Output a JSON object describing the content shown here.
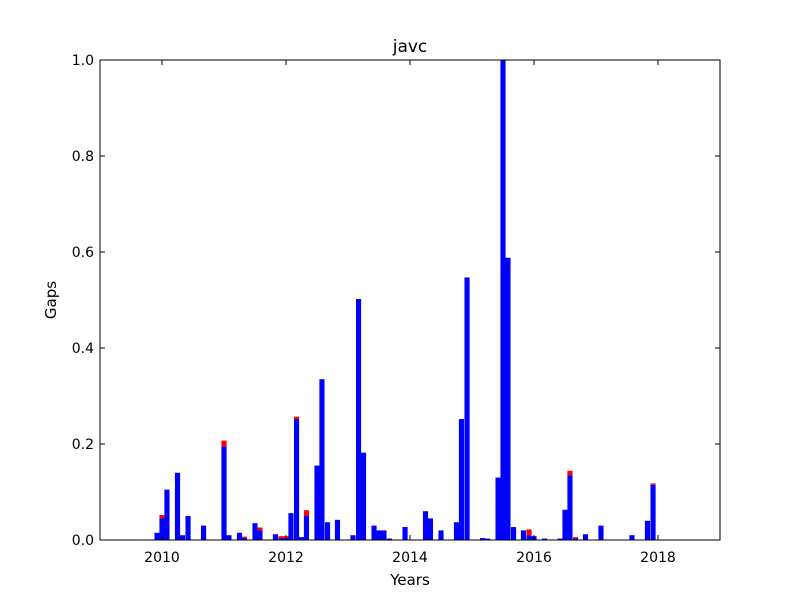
{
  "chart_data": {
    "type": "bar",
    "title": "javc",
    "xlabel": "Years",
    "ylabel": "Gaps",
    "xlim": [
      2009.0,
      2019.0
    ],
    "ylim": [
      0.0,
      1.0
    ],
    "grid": false,
    "bar_width_years": 0.083,
    "x_ticks": [
      2010,
      2012,
      2014,
      2016,
      2018
    ],
    "x_tick_labels": [
      "2010",
      "2012",
      "2014",
      "2016",
      "2018"
    ],
    "y_ticks": [
      0.0,
      0.2,
      0.4,
      0.6,
      0.8,
      1.0
    ],
    "y_tick_labels": [
      "0.0",
      "0.2",
      "0.4",
      "0.6",
      "0.8",
      "1.0"
    ],
    "colors": {
      "series_blue": "#0000ff",
      "series_red": "#ff0000"
    },
    "series": [
      {
        "color": "#0000ff",
        "x": [
          2009.92,
          2010.0,
          2010.08,
          2010.25,
          2010.33,
          2010.42,
          2010.67,
          2011.0,
          2011.08,
          2011.25,
          2011.33,
          2011.5,
          2011.58,
          2011.83,
          2011.92,
          2012.0,
          2012.08,
          2012.17,
          2012.25,
          2012.33,
          2012.5,
          2012.58,
          2012.67,
          2012.83,
          2013.08,
          2013.17,
          2013.25,
          2013.42,
          2013.5,
          2013.58,
          2013.67,
          2013.92,
          2014.25,
          2014.33,
          2014.5,
          2014.75,
          2014.83,
          2014.92,
          2015.17,
          2015.25,
          2015.42,
          2015.5,
          2015.58,
          2015.67,
          2015.83,
          2015.92,
          2016.0,
          2016.17,
          2016.42,
          2016.5,
          2016.58,
          2016.67,
          2016.83,
          2017.08,
          2017.58,
          2017.83,
          2017.92
        ],
        "values": [
          0.015,
          0.045,
          0.105,
          0.14,
          0.01,
          0.05,
          0.03,
          0.195,
          0.01,
          0.015,
          0.004,
          0.035,
          0.02,
          0.012,
          0.004,
          0.004,
          0.056,
          0.252,
          0.006,
          0.05,
          0.155,
          0.335,
          0.037,
          0.042,
          0.01,
          0.502,
          0.182,
          0.03,
          0.02,
          0.02,
          0.003,
          0.027,
          0.06,
          0.045,
          0.02,
          0.037,
          0.252,
          0.547,
          0.004,
          0.003,
          0.13,
          1.0,
          0.588,
          0.027,
          0.02,
          0.01,
          0.008,
          0.003,
          0.003,
          0.063,
          0.135,
          0.003,
          0.012,
          0.03,
          0.01,
          0.04,
          0.115
        ]
      },
      {
        "color": "#ff0000",
        "x": [
          2010.0,
          2011.0,
          2011.33,
          2011.58,
          2011.92,
          2012.0,
          2012.17,
          2012.33,
          2015.92,
          2016.58,
          2016.67,
          2017.92
        ],
        "values": [
          0.007,
          0.012,
          0.003,
          0.006,
          0.004,
          0.004,
          0.005,
          0.012,
          0.012,
          0.009,
          0.003,
          0.003
        ]
      }
    ]
  }
}
